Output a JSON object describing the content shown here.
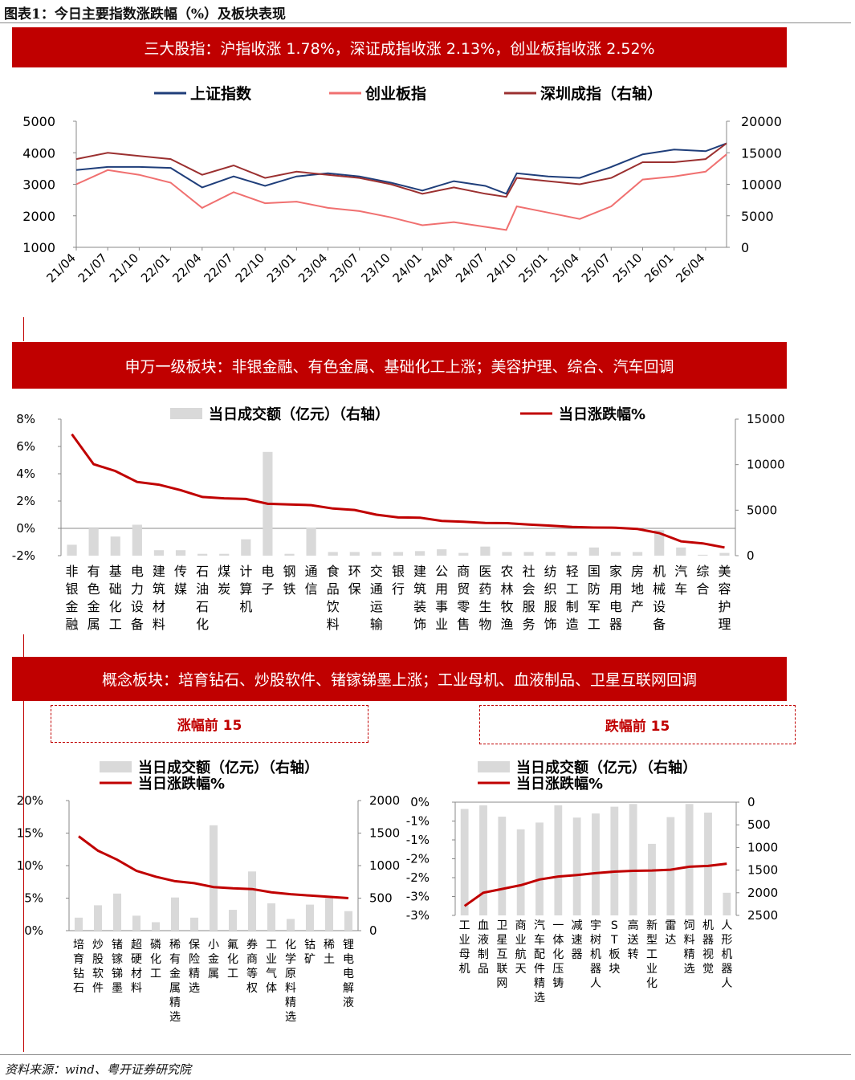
{
  "figure_title": "图表1：今日主要指数涨跌幅（%）及板块表现",
  "source": "资料来源：wind、粤开证券研究院",
  "colors": {
    "red": "#c00000",
    "navy": "#1f3e7a",
    "pink": "#f07070",
    "maroon": "#9b3030",
    "gray": "#d9d9d9"
  },
  "sections": {
    "indices_banner": "三大股指：沪指收涨 1.78%，深证成指收涨 2.13%，创业板指收涨 2.52%",
    "sw_banner": "申万一级板块：非银金融、有色金属、基础化工上涨；美容护理、综合、汽车回调",
    "concept_banner": "概念板块：培育钻石、炒股软件、锗镓锑墨上涨；工业母机、血液制品、卫星互联网回调",
    "gainers_label": "涨幅前 15",
    "losers_label": "跌幅前 15"
  },
  "chart_data": [
    {
      "id": "indices",
      "type": "line",
      "x_ticks": [
        "21/04",
        "21/07",
        "21/10",
        "22/01",
        "22/04",
        "22/07",
        "22/10",
        "23/01",
        "23/04",
        "23/07",
        "23/10",
        "24/01",
        "24/04",
        "24/07",
        "24/10",
        "25/01",
        "25/04",
        "25/07",
        "25/10",
        "26/01",
        "26/04"
      ],
      "ylim_left": [
        1000,
        5000
      ],
      "y_ticks_left": [
        "5000",
        "4000",
        "3000",
        "2000",
        "1000"
      ],
      "ylim_right": [
        0,
        20000
      ],
      "y_ticks_right": [
        "20000",
        "15000",
        "10000",
        "5000",
        "0"
      ],
      "x_month_start": "2021-04",
      "x_month_end": "2026-06",
      "series": [
        {
          "name": "上证指数",
          "axis": "left",
          "color": "#1f3e7a",
          "points": [
            [
              "2021-04",
              3450
            ],
            [
              "2021-07",
              3550
            ],
            [
              "2021-10",
              3550
            ],
            [
              "2022-01",
              3520
            ],
            [
              "2022-04",
              2900
            ],
            [
              "2022-07",
              3250
            ],
            [
              "2022-10",
              2950
            ],
            [
              "2023-01",
              3250
            ],
            [
              "2023-04",
              3350
            ],
            [
              "2023-07",
              3250
            ],
            [
              "2023-10",
              3050
            ],
            [
              "2024-01",
              2800
            ],
            [
              "2024-04",
              3100
            ],
            [
              "2024-07",
              2950
            ],
            [
              "2024-09",
              2700
            ],
            [
              "2024-10",
              3350
            ],
            [
              "2025-01",
              3250
            ],
            [
              "2025-04",
              3200
            ],
            [
              "2025-07",
              3550
            ],
            [
              "2025-10",
              3950
            ],
            [
              "2026-01",
              4100
            ],
            [
              "2026-04",
              4050
            ],
            [
              "2026-06",
              4300
            ]
          ]
        },
        {
          "name": "创业板指",
          "axis": "left",
          "color": "#f07070",
          "points": [
            [
              "2021-04",
              3000
            ],
            [
              "2021-07",
              3450
            ],
            [
              "2021-10",
              3300
            ],
            [
              "2022-01",
              3050
            ],
            [
              "2022-04",
              2250
            ],
            [
              "2022-07",
              2750
            ],
            [
              "2022-10",
              2400
            ],
            [
              "2023-01",
              2450
            ],
            [
              "2023-04",
              2250
            ],
            [
              "2023-07",
              2150
            ],
            [
              "2023-10",
              1950
            ],
            [
              "2024-01",
              1700
            ],
            [
              "2024-04",
              1800
            ],
            [
              "2024-07",
              1650
            ],
            [
              "2024-09",
              1550
            ],
            [
              "2024-10",
              2300
            ],
            [
              "2025-01",
              2100
            ],
            [
              "2025-04",
              1900
            ],
            [
              "2025-07",
              2300
            ],
            [
              "2025-10",
              3150
            ],
            [
              "2026-01",
              3250
            ],
            [
              "2026-04",
              3400
            ],
            [
              "2026-06",
              3950
            ]
          ]
        },
        {
          "name": "深圳成指（右轴）",
          "axis": "right",
          "color": "#9b3030",
          "points": [
            [
              "2021-04",
              14000
            ],
            [
              "2021-07",
              15000
            ],
            [
              "2021-10",
              14500
            ],
            [
              "2022-01",
              14000
            ],
            [
              "2022-04",
              11500
            ],
            [
              "2022-07",
              13000
            ],
            [
              "2022-10",
              11000
            ],
            [
              "2023-01",
              12000
            ],
            [
              "2023-04",
              11500
            ],
            [
              "2023-07",
              11000
            ],
            [
              "2023-10",
              10000
            ],
            [
              "2024-01",
              8500
            ],
            [
              "2024-04",
              9500
            ],
            [
              "2024-07",
              8500
            ],
            [
              "2024-09",
              8000
            ],
            [
              "2024-10",
              11000
            ],
            [
              "2025-01",
              10500
            ],
            [
              "2025-04",
              10000
            ],
            [
              "2025-07",
              11000
            ],
            [
              "2025-10",
              13500
            ],
            [
              "2026-01",
              13500
            ],
            [
              "2026-04",
              14000
            ],
            [
              "2026-06",
              16500
            ]
          ]
        }
      ]
    },
    {
      "id": "sw_industries",
      "type": "bar",
      "categories": [
        "非银金融",
        "有色金属",
        "基础化工",
        "电力设备",
        "建筑材料",
        "传媒",
        "石油石化",
        "煤炭",
        "计算机",
        "电子",
        "钢铁",
        "通信",
        "食品饮料",
        "环保",
        "交通运输",
        "银行",
        "建筑装饰",
        "公用事业",
        "商贸零售",
        "医药生物",
        "农林牧渔",
        "社会服务",
        "纺织服饰",
        "轻工制造",
        "国防军工",
        "家用电器",
        "房地产",
        "机械设备",
        "汽车",
        "综合",
        "美容护理"
      ],
      "series": [
        {
          "name": "当日成交额（亿元）（右轴）",
          "axis": "right",
          "mark": "bar",
          "values": [
            1200,
            3000,
            2100,
            3400,
            600,
            600,
            200,
            200,
            1800,
            11400,
            200,
            3100,
            400,
            400,
            400,
            400,
            500,
            700,
            300,
            1000,
            400,
            400,
            400,
            400,
            900,
            400,
            400,
            2800,
            900,
            100,
            300
          ]
        },
        {
          "name": "当日涨跌幅%",
          "axis": "left",
          "mark": "line",
          "values": [
            6.9,
            4.7,
            4.2,
            3.4,
            3.2,
            2.8,
            2.3,
            2.2,
            2.15,
            1.8,
            1.75,
            1.7,
            1.45,
            1.35,
            1.0,
            0.8,
            0.78,
            0.55,
            0.48,
            0.4,
            0.38,
            0.28,
            0.2,
            0.1,
            0.06,
            0.05,
            -0.05,
            -0.35,
            -0.95,
            -1.1,
            -1.4
          ]
        }
      ],
      "ylim_left": [
        -2,
        8
      ],
      "y_ticks_left": [
        "8%",
        "6%",
        "4%",
        "2%",
        "0%",
        "-2%"
      ],
      "ylim_right": [
        0,
        15000
      ],
      "y_ticks_right": [
        "15000",
        "10000",
        "5000",
        "0"
      ]
    },
    {
      "id": "concept_gainers",
      "type": "bar",
      "categories": [
        "培育钻石",
        "炒股软件",
        "锗镓锑墨",
        "超硬材料",
        "磷化工",
        "稀有金属精选",
        "保险精选",
        "小金属",
        "氟化工",
        "券商等权",
        "工业气体",
        "化学原料精选",
        "钴矿",
        "稀土",
        "锂电电解液"
      ],
      "series": [
        {
          "name": "当日成交额（亿元）（右轴）",
          "axis": "right",
          "mark": "bar",
          "values": [
            200,
            390,
            570,
            230,
            130,
            510,
            200,
            1620,
            320,
            910,
            420,
            180,
            400,
            500,
            300
          ]
        },
        {
          "name": "当日涨跌幅%",
          "axis": "left",
          "mark": "line",
          "values": [
            14.5,
            12.3,
            10.9,
            9.2,
            8.3,
            7.6,
            7.3,
            6.7,
            6.5,
            6.4,
            5.9,
            5.6,
            5.4,
            5.2,
            5.0
          ]
        }
      ],
      "ylim_left": [
        0,
        20
      ],
      "y_ticks_left": [
        "20%",
        "15%",
        "10%",
        "5%",
        "0%"
      ],
      "ylim_right": [
        0,
        2000
      ],
      "y_ticks_right": [
        "2000",
        "1500",
        "1000",
        "500",
        "0"
      ]
    },
    {
      "id": "concept_losers",
      "type": "bar",
      "categories": [
        "工业母机",
        "血液制品",
        "卫星互联网",
        "商业航天",
        "汽车配件精选",
        "一体化压铸",
        "减速器",
        "宇树机器人",
        "ST板块",
        "高送转",
        "新型工业化",
        "雷达",
        "饲料精选",
        "机器视觉",
        "人形机器人"
      ],
      "series": [
        {
          "name": "当日成交额（亿元）（右轴）",
          "axis": "right",
          "mark": "bar",
          "values": [
            150,
            70,
            320,
            600,
            450,
            70,
            340,
            250,
            100,
            40,
            920,
            330,
            40,
            230,
            2000
          ]
        },
        {
          "name": "当日涨跌幅%",
          "axis": "left",
          "mark": "line",
          "values": [
            -2.75,
            -2.4,
            -2.3,
            -2.2,
            -2.05,
            -1.97,
            -1.93,
            -1.88,
            -1.84,
            -1.82,
            -1.81,
            -1.79,
            -1.71,
            -1.69,
            -1.63
          ]
        }
      ],
      "ylim_left": [
        -3,
        0
      ],
      "y_ticks_left": [
        "0%",
        "-1%",
        "-1%",
        "-2%",
        "-2%",
        "-3%",
        "-3%"
      ],
      "ylim_right": [
        2500,
        0
      ],
      "y_ticks_right": [
        "0",
        "500",
        "1000",
        "1500",
        "2000",
        "2500"
      ]
    }
  ]
}
